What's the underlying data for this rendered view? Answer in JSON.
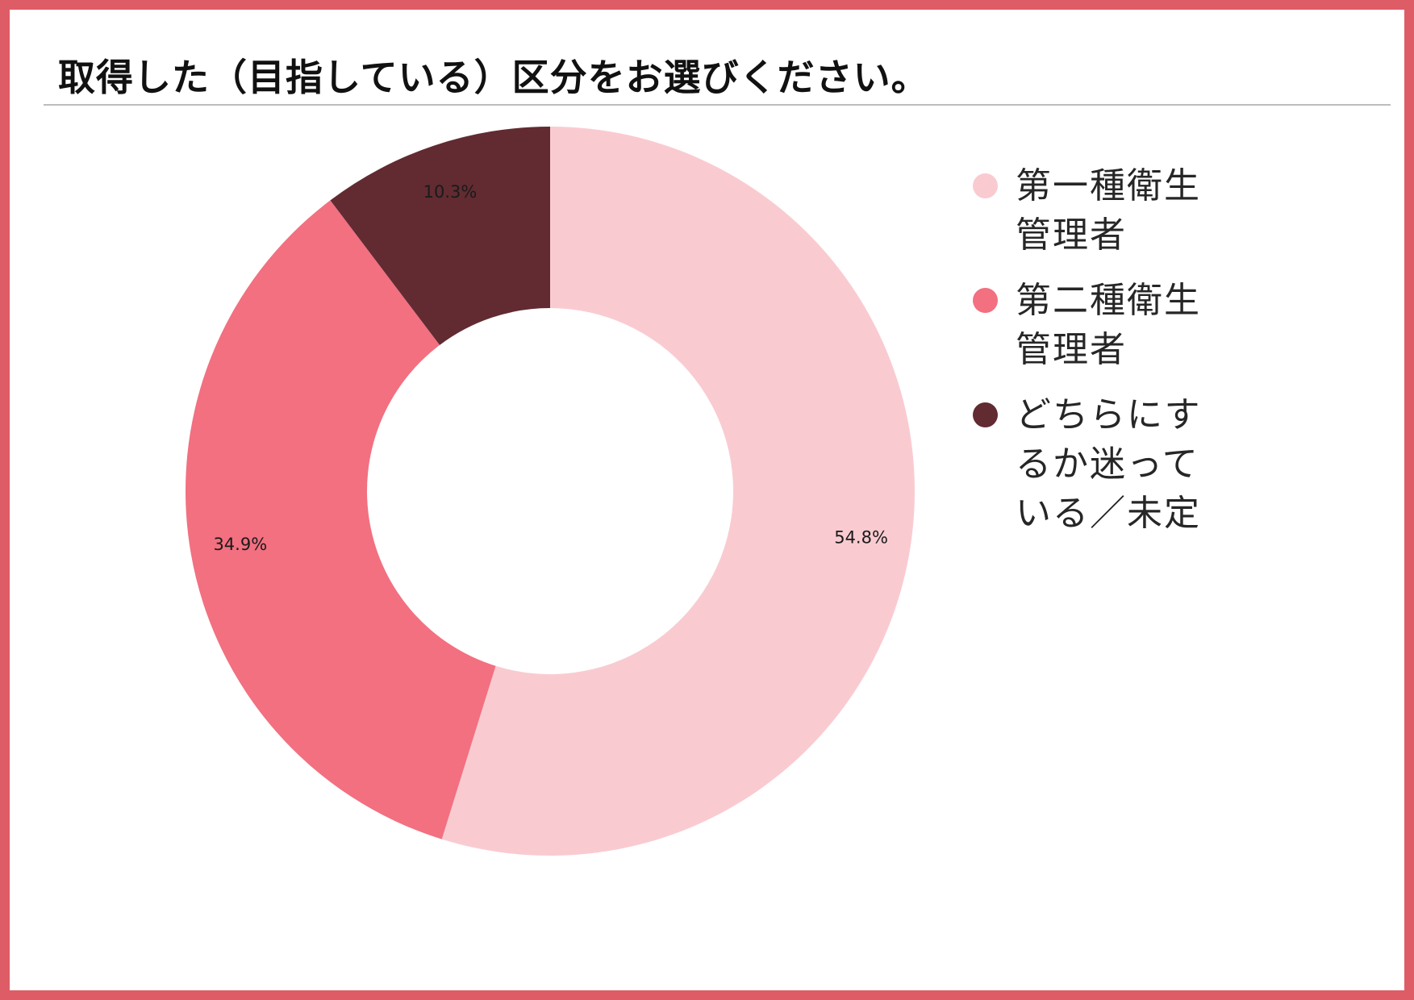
{
  "page": {
    "title": "取得した（目指している）区分をお選びください。"
  },
  "chart_data": {
    "type": "pie",
    "donut": true,
    "title": "取得した（目指している）区分をお選びください。",
    "unit": "%",
    "legend_position": "right",
    "slices": [
      {
        "label": "第一種衛生管理者",
        "value": 54.8,
        "display": "54.8%",
        "color": "#f9cbd1"
      },
      {
        "label": "第二種衛生管理者",
        "value": 34.9,
        "display": "34.9%",
        "color": "#f27080"
      },
      {
        "label": "どちらにするか迷っている／未定",
        "value": 10.3,
        "display": "10.3%",
        "color": "#612b31"
      }
    ]
  }
}
